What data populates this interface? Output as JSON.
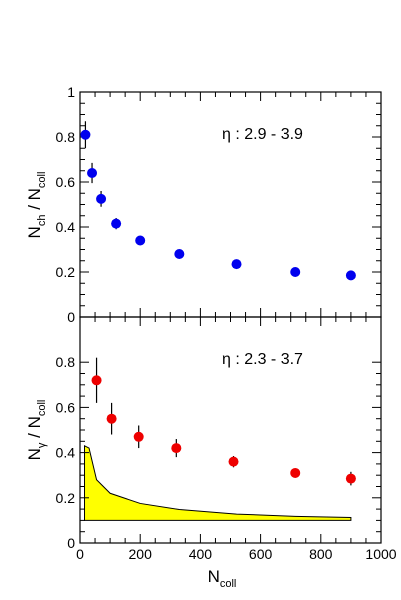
{
  "chart_data": [
    {
      "type": "scatter",
      "panel": "top",
      "annotation": "η : 2.9 - 3.9",
      "ylabel": {
        "main": "N",
        "sub": "ch",
        "sep": " / N",
        "sub2": "coll"
      },
      "xlim": [
        0,
        1000
      ],
      "ylim": [
        0,
        1
      ],
      "yticks": [
        0,
        0.2,
        0.4,
        0.6,
        0.8,
        1
      ],
      "ytick_labels": [
        "0",
        "0.2",
        "0.4",
        "0.6",
        "0.8",
        "1"
      ],
      "marker_color": "#0000ee",
      "points": [
        {
          "x": 18,
          "y": 0.81,
          "err": 0.06
        },
        {
          "x": 40,
          "y": 0.64,
          "err": 0.045
        },
        {
          "x": 70,
          "y": 0.525,
          "err": 0.035
        },
        {
          "x": 120,
          "y": 0.415,
          "err": 0.025
        },
        {
          "x": 200,
          "y": 0.34,
          "err": 0.015
        },
        {
          "x": 330,
          "y": 0.28,
          "err": 0.01
        },
        {
          "x": 520,
          "y": 0.235,
          "err": 0.008
        },
        {
          "x": 715,
          "y": 0.2,
          "err": 0.006
        },
        {
          "x": 900,
          "y": 0.185,
          "err": 0.006
        }
      ]
    },
    {
      "type": "scatter",
      "panel": "bottom",
      "annotation": "η : 2.3 - 3.7",
      "ylabel": {
        "main": "N",
        "sub": "γ",
        "sep": " / N",
        "sub2": "coll"
      },
      "xlabel": {
        "main": "N",
        "sub": "coll"
      },
      "xlim": [
        0,
        1000
      ],
      "ylim": [
        0,
        1
      ],
      "xticks": [
        0,
        200,
        400,
        600,
        800,
        1000
      ],
      "xtick_labels": [
        "0",
        "200",
        "400",
        "600",
        "800",
        "1000"
      ],
      "yticks": [
        0,
        0.2,
        0.4,
        0.6,
        0.8
      ],
      "ytick_labels": [
        "0",
        "0.2",
        "0.4",
        "0.6",
        "0.8"
      ],
      "marker_color": "#ee0000",
      "points": [
        {
          "x": 55,
          "y": 0.72,
          "err": 0.1
        },
        {
          "x": 105,
          "y": 0.55,
          "err": 0.07
        },
        {
          "x": 195,
          "y": 0.47,
          "err": 0.05
        },
        {
          "x": 320,
          "y": 0.42,
          "err": 0.04
        },
        {
          "x": 510,
          "y": 0.36,
          "err": 0.025
        },
        {
          "x": 715,
          "y": 0.31,
          "err": 0.02
        },
        {
          "x": 900,
          "y": 0.285,
          "err": 0.03
        }
      ],
      "band": {
        "fill": "#ffff00",
        "lower": 0.1,
        "upper": [
          {
            "x": 15,
            "y": 0.43
          },
          {
            "x": 30,
            "y": 0.42
          },
          {
            "x": 55,
            "y": 0.28
          },
          {
            "x": 100,
            "y": 0.22
          },
          {
            "x": 200,
            "y": 0.175
          },
          {
            "x": 330,
            "y": 0.148
          },
          {
            "x": 520,
            "y": 0.128
          },
          {
            "x": 715,
            "y": 0.118
          },
          {
            "x": 900,
            "y": 0.113
          }
        ]
      }
    }
  ]
}
